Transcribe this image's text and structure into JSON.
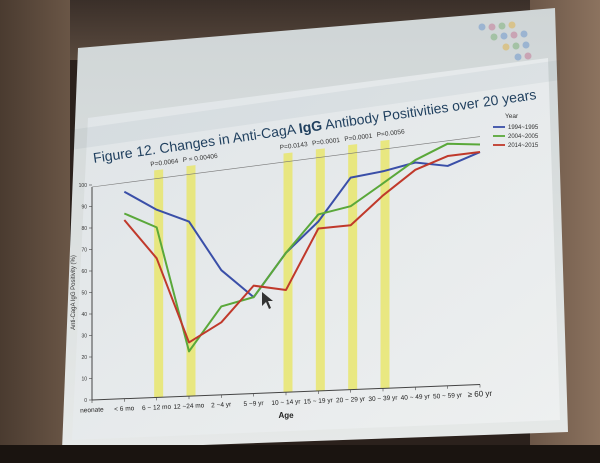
{
  "slide": {
    "title_prefix": "Figure 12. Changes in Anti-CagA ",
    "title_bold": "IgG",
    "title_suffix": " Antibody Positivities over 20 years"
  },
  "chart_data": {
    "type": "line",
    "title": "Figure 12. Changes in Anti-CagA IgG Antibody Positivities over 20 years",
    "xlabel": "Age",
    "ylabel": "Anti-CagA IgG Positivity (%)",
    "ylim": [
      0,
      100
    ],
    "yticks": [
      0,
      10,
      20,
      30,
      40,
      50,
      60,
      70,
      80,
      90,
      100
    ],
    "categories": [
      "neonate",
      "< 6 mo",
      "6 ~ 12 mo",
      "12 ~24 mo",
      "2 ~4 yr",
      "5 ~9 yr",
      "10 ~ 14 yr",
      "15 ~ 19 yr",
      "20 ~ 29 yr",
      "30 ~ 39 yr",
      "40 ~ 49 yr",
      "50 ~ 59 yr",
      "≥ 60 yr"
    ],
    "legend_title": "Year",
    "legend_position": "right",
    "series": [
      {
        "name": "1994~1995",
        "color": "#3a4fa8",
        "values": [
          null,
          95,
          85,
          78,
          55,
          42,
          60,
          72,
          89,
          90,
          92,
          89,
          93
        ]
      },
      {
        "name": "2004~2005",
        "color": "#5aa83a",
        "values": [
          null,
          85,
          77,
          20,
          39,
          42,
          60,
          75,
          77,
          85,
          93,
          98,
          96
        ]
      },
      {
        "name": "2014~2015",
        "color": "#c0392b",
        "values": [
          null,
          82,
          63,
          24,
          32,
          47,
          44,
          69,
          69,
          80,
          89,
          93,
          93
        ]
      }
    ],
    "p_values": [
      {
        "label": "P=0.0064",
        "category": "6 ~ 12 mo"
      },
      {
        "label": "P = 0.00406",
        "category": "12 ~24 mo"
      },
      {
        "label": "P=0.0143",
        "category": "10 ~ 14 yr"
      },
      {
        "label": "P=0.0001",
        "category": "15 ~ 19 yr"
      },
      {
        "label": "P=0.0001",
        "category": "20 ~ 29 yr"
      },
      {
        "label": "P=0.0056",
        "category": "30 ~ 39 yr"
      }
    ],
    "highlight_color": "#e8e65c",
    "grid": false
  }
}
